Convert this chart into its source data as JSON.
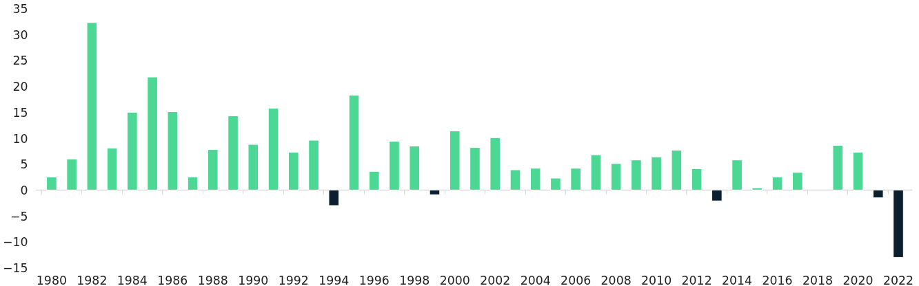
{
  "chart_data": {
    "type": "bar",
    "categories": [
      "1980",
      null,
      "1982",
      null,
      "1984",
      null,
      "1986",
      null,
      "1988",
      null,
      "1990",
      null,
      "1992",
      null,
      "1994",
      null,
      "1996",
      null,
      "1998",
      null,
      "2000",
      null,
      "2002",
      null,
      "2004",
      null,
      "2006",
      null,
      "2008",
      null,
      "2010",
      null,
      "2012",
      null,
      "2014",
      null,
      "2016",
      null,
      "2018",
      null,
      "2020",
      null,
      "2022"
    ],
    "values": [
      2.5,
      6.0,
      32.3,
      8.1,
      15.0,
      21.8,
      15.1,
      2.5,
      7.8,
      14.3,
      8.8,
      15.8,
      7.3,
      9.6,
      -3.0,
      18.3,
      3.6,
      9.4,
      8.5,
      -0.9,
      11.4,
      8.2,
      10.1,
      3.9,
      4.2,
      2.3,
      4.2,
      6.8,
      5.1,
      5.8,
      6.4,
      7.7,
      4.1,
      -2.1,
      5.8,
      0.4,
      2.5,
      3.4,
      null,
      8.6,
      7.3,
      -1.5,
      -13.0
    ],
    "colors": [
      "#4cd794",
      "#4cd794",
      "#4cd794",
      "#4cd794",
      "#4cd794",
      "#4cd794",
      "#4cd794",
      "#4cd794",
      "#4cd794",
      "#4cd794",
      "#4cd794",
      "#4cd794",
      "#4cd794",
      "#4cd794",
      "#0b1f2e",
      "#4cd794",
      "#4cd794",
      "#4cd794",
      "#4cd794",
      "#0b1f2e",
      "#4cd794",
      "#4cd794",
      "#4cd794",
      "#4cd794",
      "#4cd794",
      "#4cd794",
      "#4cd794",
      "#4cd794",
      "#4cd794",
      "#4cd794",
      "#4cd794",
      "#4cd794",
      "#4cd794",
      "#0b1f2e",
      "#4cd794",
      "#4cd794",
      "#4cd794",
      "#4cd794",
      "#4cd794",
      "#4cd794",
      "#4cd794",
      "#0b1f2e",
      "#0b1f2e"
    ],
    "ylim": [
      -15,
      35
    ],
    "yticks": [
      -15,
      -10,
      -5,
      0,
      5,
      10,
      15,
      20,
      25,
      30,
      35
    ],
    "grid": false,
    "ref_lines": [
      {
        "axis": "y",
        "value": 0,
        "color": "#d9d9d9"
      }
    ]
  }
}
